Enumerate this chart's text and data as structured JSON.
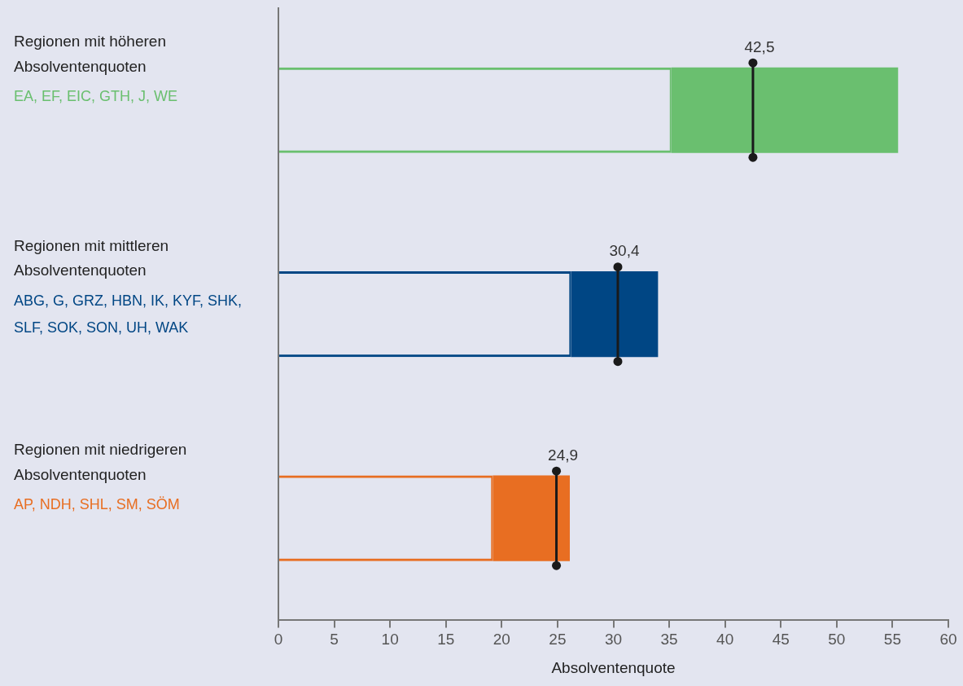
{
  "chart_data": {
    "type": "bar",
    "orientation": "horizontal",
    "stacked": true,
    "xlabel": "Absolventenquote",
    "categories": [
      "Regionen mit höheren Absolventenquoten",
      "Regionen mit mittleren Absolventenquoten",
      "Regionen mit niedrigeren Absolventenquoten"
    ],
    "series": [
      {
        "colors": [
          "#6abf6f",
          "#004684",
          "#e86e22"
        ],
        "values": [
          35.2,
          26.2,
          19.2
        ]
      },
      {
        "colors": [
          "#6abf6f",
          "#004684",
          "#e86e22"
        ],
        "values": [
          20.3,
          7.8,
          6.9
        ]
      },
      {
        "type": "scatter",
        "color": "#1a1a1a",
        "values": [
          42.5,
          30.4,
          24.9
        ],
        "value_labels": [
          "42,5",
          "30,4",
          "24,9"
        ]
      }
    ],
    "xlim": [
      0,
      60
    ],
    "xticks": [
      0,
      5,
      10,
      15,
      20,
      25,
      30,
      35,
      40,
      45,
      50,
      55,
      60
    ],
    "grid": false,
    "legend": false,
    "annotations": [
      "EA, EF, EIC, GTH, J, WE",
      "ABG, G, GRZ, HBN, IK, KYF, SHK, SLF, SOK, SON, UH, WAK",
      "AP, NDH, SHL, SM, SÖM"
    ]
  }
}
